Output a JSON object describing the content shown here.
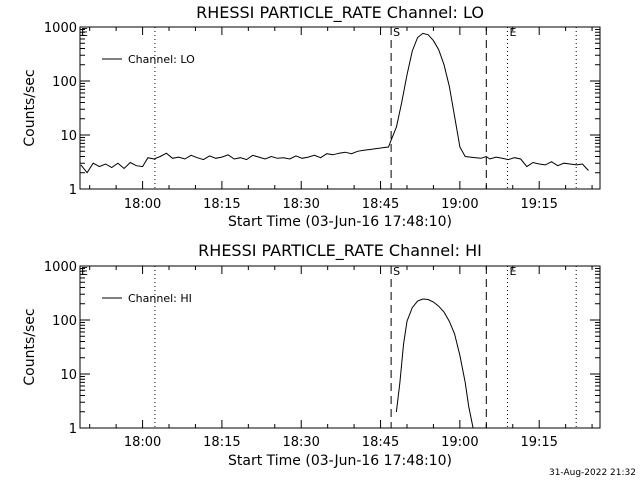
{
  "chart_data": [
    {
      "type": "line",
      "title": "RHESSI PARTICLE_RATE Channel: LO",
      "xlabel": "Start Time (03-Jun-16 17:48:10)",
      "ylabel": "Counts/sec",
      "y_scale": "log",
      "ylim": [
        1,
        1000
      ],
      "xlim": [
        "17:48:10",
        "19:26:30"
      ],
      "x_ticks": [
        "18:00",
        "18:15",
        "18:30",
        "18:45",
        "19:00",
        "19:15"
      ],
      "y_ticks": [
        "1",
        "10",
        "100",
        "1000"
      ],
      "legend": {
        "position": "top-left",
        "entries": [
          "Channel: LO"
        ]
      },
      "series": [
        {
          "name": "Channel: LO",
          "x": [
            "17:48:20",
            "17:49:30",
            "17:50:40",
            "17:51:50",
            "17:53:00",
            "17:54:10",
            "17:55:20",
            "17:56:30",
            "17:57:40",
            "17:58:50",
            "18:00:00",
            "18:01:00",
            "18:02:10",
            "18:03:20",
            "18:04:30",
            "18:05:40",
            "18:06:50",
            "18:08:00",
            "18:09:10",
            "18:10:20",
            "18:11:30",
            "18:12:40",
            "18:13:50",
            "18:15:00",
            "18:16:10",
            "18:17:20",
            "18:18:30",
            "18:19:40",
            "18:20:50",
            "18:22:00",
            "18:23:10",
            "18:24:20",
            "18:25:30",
            "18:26:40",
            "18:27:50",
            "18:29:00",
            "18:30:10",
            "18:31:20",
            "18:32:30",
            "18:33:40",
            "18:34:50",
            "18:36:00",
            "18:37:10",
            "18:38:20",
            "18:39:30",
            "18:40:40",
            "18:41:50",
            "18:43:00",
            "18:44:10",
            "18:45:20",
            "18:46:30",
            "18:47:00",
            "18:48:00",
            "18:49:00",
            "18:50:00",
            "18:51:00",
            "18:52:00",
            "18:53:00",
            "18:54:00",
            "18:55:00",
            "18:56:00",
            "18:57:00",
            "18:58:00",
            "18:59:00",
            "19:00:00",
            "19:01:00",
            "19:02:00",
            "19:03:00",
            "19:04:00",
            "19:05:00",
            "19:05:40",
            "19:06:50",
            "19:08:00",
            "19:09:10",
            "19:10:20",
            "19:11:30",
            "19:12:40",
            "19:13:50",
            "19:15:00",
            "19:16:10",
            "19:17:20",
            "19:18:30",
            "19:19:40",
            "19:20:50",
            "19:22:00",
            "19:23:10",
            "19:24:20"
          ],
          "values": [
            2.8,
            2,
            3,
            2.6,
            2.9,
            2.5,
            3,
            2.4,
            3.1,
            2.7,
            2.6,
            3.8,
            3.6,
            4,
            4.6,
            3.7,
            3.9,
            3.6,
            4.2,
            3.8,
            3.5,
            4.1,
            3.7,
            3.9,
            4.3,
            3.6,
            3.8,
            3.5,
            4.2,
            3.9,
            3.6,
            4,
            3.7,
            3.8,
            3.6,
            4.1,
            3.7,
            3.9,
            4.2,
            3.8,
            4.5,
            4.3,
            4.6,
            4.8,
            4.5,
            5,
            5.2,
            5.4,
            5.6,
            5.8,
            6,
            8,
            14,
            40,
            130,
            360,
            640,
            760,
            720,
            560,
            380,
            200,
            80,
            22,
            6,
            4,
            3.9,
            3.8,
            3.7,
            4,
            3.6,
            3.9,
            3.7,
            3.5,
            3.8,
            3.6,
            2.6,
            3.1,
            2.9,
            2.8,
            3.2,
            2.7,
            3,
            2.9,
            2.8,
            2.9,
            2.2
          ]
        }
      ],
      "markers": [
        {
          "label": "",
          "time": "18:02:20",
          "style": "dotted"
        },
        {
          "label": "S",
          "time": "18:47:00",
          "style": "dashed"
        },
        {
          "label": "",
          "time": "19:05:00",
          "style": "dashed"
        },
        {
          "label": "E",
          "time": "19:09:00",
          "style": "dotted"
        },
        {
          "label": "",
          "time": "19:22:00",
          "style": "dotted"
        }
      ]
    },
    {
      "type": "line",
      "title": "RHESSI PARTICLE_RATE Channel: HI",
      "xlabel": "Start Time (03-Jun-16 17:48:10)",
      "ylabel": "Counts/sec",
      "y_scale": "log",
      "ylim": [
        1,
        1000
      ],
      "xlim": [
        "17:48:10",
        "19:26:30"
      ],
      "x_ticks": [
        "18:00",
        "18:15",
        "18:30",
        "18:45",
        "19:00",
        "19:15"
      ],
      "y_ticks": [
        "1",
        "10",
        "100",
        "1000"
      ],
      "legend": {
        "position": "top-left",
        "entries": [
          "Channel: HI"
        ]
      },
      "series": [
        {
          "name": "Channel: HI",
          "x": [
            "18:48:00",
            "18:48:40",
            "18:49:20",
            "18:50:00",
            "18:51:00",
            "18:52:00",
            "18:53:00",
            "18:54:00",
            "18:55:00",
            "18:56:00",
            "18:57:00",
            "18:58:00",
            "18:59:00",
            "19:00:00",
            "19:01:00",
            "19:01:40",
            "19:02:30"
          ],
          "values": [
            2,
            7,
            35,
            95,
            170,
            225,
            245,
            240,
            215,
            180,
            140,
            95,
            55,
            22,
            7,
            2.5,
            1
          ]
        }
      ],
      "markers": [
        {
          "label": "",
          "time": "18:02:20",
          "style": "dotted"
        },
        {
          "label": "S",
          "time": "18:47:00",
          "style": "dashed"
        },
        {
          "label": "",
          "time": "19:05:00",
          "style": "dashed"
        },
        {
          "label": "E",
          "time": "19:09:00",
          "style": "dotted"
        },
        {
          "label": "",
          "time": "19:22:00",
          "style": "dotted"
        }
      ]
    }
  ],
  "footer": {
    "timestamp": "31-Aug-2022 21:32"
  },
  "colors": {
    "line": "#000000",
    "background": "#ffffff"
  }
}
